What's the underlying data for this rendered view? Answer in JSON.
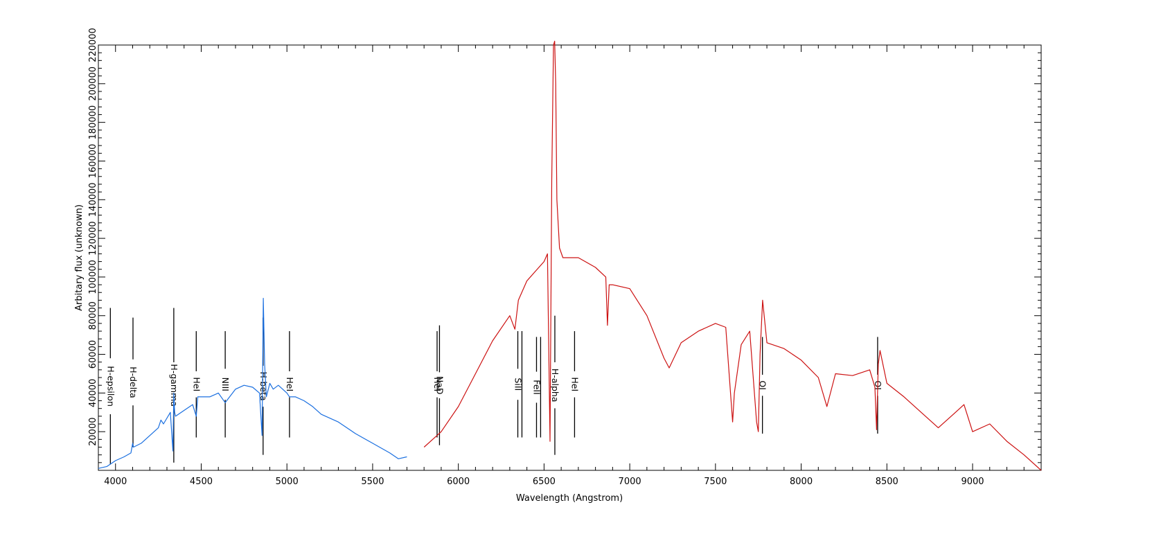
{
  "chart_data": {
    "type": "line",
    "title": "",
    "xlabel": "Wavelength (Angstrom)",
    "ylabel": "Arbitary flux (unknown)",
    "xlim": [
      3900,
      9400
    ],
    "ylim": [
      0,
      220000
    ],
    "grid": false,
    "x_ticks": [
      4000,
      4500,
      5000,
      5500,
      6000,
      6500,
      7000,
      7500,
      8000,
      8500,
      9000
    ],
    "y_ticks": [
      20000,
      40000,
      60000,
      80000,
      100000,
      120000,
      140000,
      160000,
      180000,
      200000,
      220000
    ],
    "series": [
      {
        "color": "#1a6fe0",
        "x": [
          3900,
          3950,
          4000,
          4050,
          4090,
          4100,
          4105,
          4150,
          4200,
          4250,
          4265,
          4280,
          4320,
          4335,
          4340,
          4345,
          4350,
          4400,
          4450,
          4471,
          4480,
          4550,
          4600,
          4640,
          4700,
          4750,
          4800,
          4840,
          4855,
          4862,
          4870,
          4880,
          4900,
          4920,
          4950,
          5000,
          5015,
          5050,
          5100,
          5150,
          5200,
          5300,
          5400,
          5500,
          5600,
          5650,
          5700
        ],
        "y": [
          1000,
          2000,
          5000,
          7000,
          9000,
          14000,
          12000,
          14000,
          18000,
          22000,
          26000,
          24000,
          30000,
          10000,
          40000,
          30000,
          28000,
          31000,
          34000,
          28000,
          38000,
          38000,
          40000,
          35000,
          42000,
          44000,
          43000,
          40000,
          18000,
          89000,
          55000,
          38000,
          45000,
          42000,
          44000,
          40000,
          38000,
          38000,
          36000,
          33000,
          29000,
          25000,
          19000,
          14000,
          9000,
          6000,
          7000
        ]
      },
      {
        "color": "#cc1111",
        "x": [
          5800,
          5900,
          6000,
          6100,
          6200,
          6300,
          6330,
          6350,
          6400,
          6450,
          6500,
          6520,
          6535,
          6545,
          6555,
          6562,
          6568,
          6575,
          6590,
          6610,
          6700,
          6800,
          6860,
          6870,
          6880,
          6900,
          7000,
          7100,
          7200,
          7230,
          7300,
          7400,
          7500,
          7560,
          7600,
          7610,
          7650,
          7700,
          7740,
          7750,
          7760,
          7775,
          7800,
          7900,
          8000,
          8100,
          8150,
          8200,
          8300,
          8400,
          8430,
          8440,
          8450,
          8460,
          8500,
          8600,
          8700,
          8800,
          8900,
          8950,
          9000,
          9100,
          9200,
          9300,
          9400
        ],
        "y": [
          12000,
          20000,
          33000,
          50000,
          67000,
          80000,
          73000,
          88000,
          98000,
          103000,
          108000,
          112000,
          15000,
          150000,
          220000,
          222000,
          200000,
          140000,
          115000,
          110000,
          110000,
          105000,
          100000,
          75000,
          96000,
          96000,
          94000,
          80000,
          58000,
          53000,
          66000,
          72000,
          76000,
          74000,
          25000,
          40000,
          65000,
          72000,
          25000,
          20000,
          60000,
          88000,
          66000,
          63000,
          57000,
          48000,
          33000,
          50000,
          49000,
          52000,
          43000,
          21000,
          55000,
          62000,
          45000,
          38000,
          30000,
          22000,
          30000,
          34000,
          20000,
          24000,
          15000,
          8000,
          0
        ]
      }
    ],
    "line_markers": [
      {
        "label": "H-epsilon",
        "x": 3970,
        "y0": 3000,
        "y1": 84000
      },
      {
        "label": "H-delta",
        "x": 4102,
        "y0": 12000,
        "y1": 79000
      },
      {
        "label": "H-gamma",
        "x": 4340,
        "y0": 4000,
        "y1": 84000
      },
      {
        "label": "HeI",
        "x": 4471,
        "y0": 17000,
        "y1": 72000
      },
      {
        "label": "NIII",
        "x": 4640,
        "y0": 17000,
        "y1": 72000
      },
      {
        "label": "H-beta",
        "x": 4861,
        "y0": 8000,
        "y1": 79000
      },
      {
        "label": "HeI",
        "x": 5015,
        "y0": 17000,
        "y1": 72000
      },
      {
        "label": "NaD",
        "x": 5890,
        "y0": 13000,
        "y1": 75000
      },
      {
        "label": "HeI",
        "x": 5876,
        "y0": 17000,
        "y1": 72000
      },
      {
        "label": "SiII",
        "x": 6347,
        "y0": 17000,
        "y1": 72000
      },
      {
        "label": "",
        "x": 6371,
        "y0": 17000,
        "y1": 72000
      },
      {
        "label": "FeII",
        "x": 6456,
        "y0": 17000,
        "y1": 69000
      },
      {
        "label": "",
        "x": 6480,
        "y0": 17000,
        "y1": 69000
      },
      {
        "label": "H-alpha",
        "x": 6563,
        "y0": 8000,
        "y1": 80000
      },
      {
        "label": "HeI",
        "x": 6678,
        "y0": 17000,
        "y1": 72000
      },
      {
        "label": "OI",
        "x": 7774,
        "y0": 19000,
        "y1": 69000
      },
      {
        "label": "OI",
        "x": 8446,
        "y0": 19000,
        "y1": 69000
      }
    ]
  }
}
